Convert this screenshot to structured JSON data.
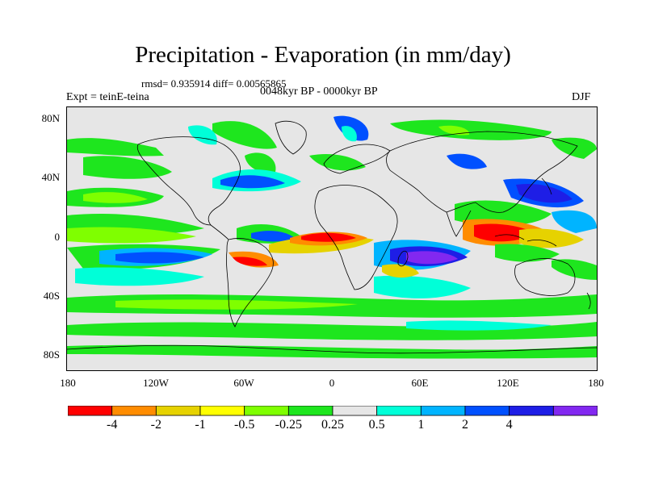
{
  "title": "Precipitation - Evaporation (in mm/day)",
  "stats": "rmsd= 0.935914 diff= 0.00565865",
  "expt": "Expt = teinE-teina",
  "period": "0048kyr BP - 0000kyr BP",
  "season": "DJF",
  "y_axis": [
    "80N",
    "40N",
    "0",
    "40S",
    "80S"
  ],
  "x_axis": [
    "180",
    "120W",
    "60W",
    "0",
    "60E",
    "120E",
    "180"
  ],
  "colorbar": {
    "colors": [
      "#ff0000",
      "#ff8c00",
      "#e6d200",
      "#ffff00",
      "#7fff00",
      "#1ee61e",
      "#e6e6e6",
      "#00ffd8",
      "#00b4ff",
      "#0050ff",
      "#1e1ee6",
      "#8228f0"
    ],
    "labels": [
      "-4",
      "-2",
      "-1",
      "-0.5",
      "-0.25",
      "0.25",
      "0.5",
      "1",
      "2",
      "4"
    ]
  }
}
